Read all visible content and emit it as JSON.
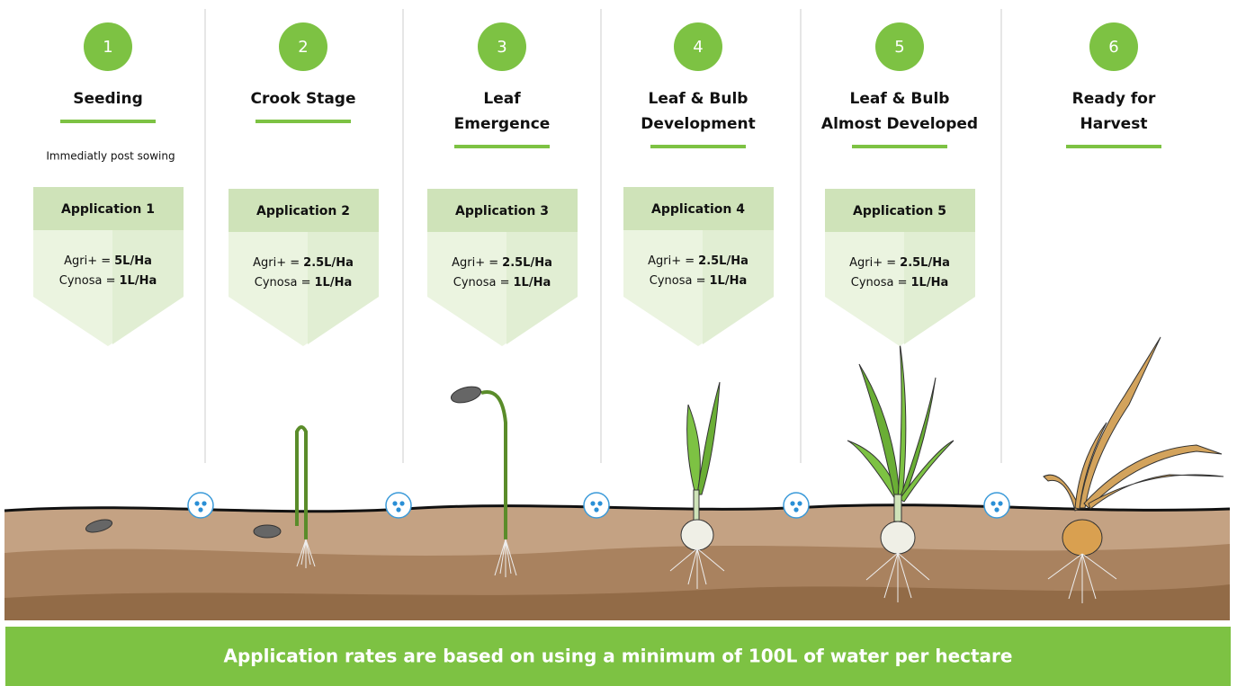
{
  "stages": [
    {
      "number": "1",
      "title_lines": [
        "Seeding"
      ],
      "note": "Immediatly post sowing",
      "application": {
        "title": "Application 1",
        "lines": [
          {
            "label": "Agri+ =",
            "rate": "5L/Ha"
          },
          {
            "label": "Cynosa =",
            "rate": "1L/Ha"
          }
        ]
      }
    },
    {
      "number": "2",
      "title_lines": [
        "Crook Stage"
      ],
      "application": {
        "title": "Application 2",
        "lines": [
          {
            "label": "Agri+ =",
            "rate": "2.5L/Ha"
          },
          {
            "label": "Cynosa =",
            "rate": "1L/Ha"
          }
        ]
      }
    },
    {
      "number": "3",
      "title_lines": [
        "Leaf",
        "Emergence"
      ],
      "application": {
        "title": "Application 3",
        "lines": [
          {
            "label": "Agri+ =",
            "rate": "2.5L/Ha"
          },
          {
            "label": "Cynosa =",
            "rate": "1L/Ha"
          }
        ]
      }
    },
    {
      "number": "4",
      "title_lines": [
        "Leaf & Bulb",
        "Development"
      ],
      "application": {
        "title": "Application 4",
        "lines": [
          {
            "label": "Agri+ =",
            "rate": "2.5L/Ha"
          },
          {
            "label": "Cynosa =",
            "rate": "1L/Ha"
          }
        ]
      }
    },
    {
      "number": "5",
      "title_lines": [
        "Leaf & Bulb",
        "Almost Developed"
      ],
      "application": {
        "title": "Application 5",
        "lines": [
          {
            "label": "Agri+ =",
            "rate": "2.5L/Ha"
          },
          {
            "label": "Cynosa =",
            "rate": "1L/Ha"
          }
        ]
      }
    },
    {
      "number": "6",
      "title_lines": [
        "Ready for",
        "Harvest"
      ]
    }
  ],
  "footer": "Application rates are based on using a minimum of 100L of water per hectare"
}
